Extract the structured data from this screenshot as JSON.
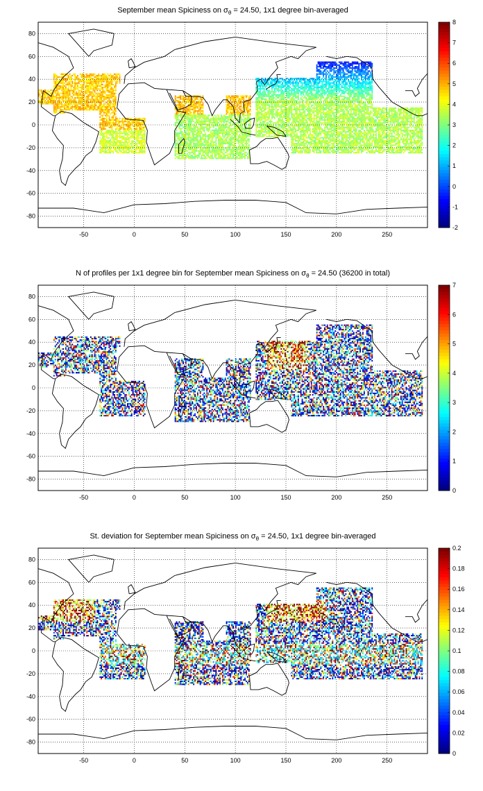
{
  "chart_data": [
    {
      "type": "heatmap",
      "title": "September mean Spiciness on σθ = 24.50, 1x1 degree bin-averaged",
      "title_parts": [
        "September mean Spiciness on σ",
        "θ",
        " = 24.50, 1x1 degree bin-averaged"
      ],
      "x_ticks": [
        "-50",
        "0",
        "50",
        "100",
        "150",
        "200",
        "250"
      ],
      "y_ticks": [
        "80",
        "60",
        "40",
        "20",
        "0",
        "-20",
        "-40",
        "-60",
        "-80"
      ],
      "xlim": [
        -95,
        290
      ],
      "ylim": [
        -90,
        90
      ],
      "colorbar": {
        "min": -2,
        "max": 8,
        "ticks": [
          "8",
          "7",
          "6",
          "5",
          "4",
          "3",
          "2",
          "1",
          "0",
          "-1",
          "-2"
        ]
      },
      "colormap": "jet",
      "grid": true,
      "field": "spiciness"
    },
    {
      "type": "heatmap",
      "title": "N of profiles per 1x1 degree bin for September mean Spiciness on σθ = 24.50 (36200 in total)",
      "title_parts": [
        "N of profiles per 1x1 degree bin for September mean Spiciness on σ",
        "θ",
        " = 24.50 (36200 in total)"
      ],
      "x_ticks": [
        "-50",
        "0",
        "50",
        "100",
        "150",
        "200",
        "250"
      ],
      "y_ticks": [
        "80",
        "60",
        "40",
        "20",
        "0",
        "-20",
        "-40",
        "-60",
        "-80"
      ],
      "xlim": [
        -95,
        290
      ],
      "ylim": [
        -90,
        90
      ],
      "colorbar": {
        "min": 0,
        "max": 7,
        "ticks": [
          "7",
          "6",
          "5",
          "4",
          "3",
          "2",
          "1",
          "0"
        ]
      },
      "colormap": "jet",
      "grid": true,
      "field": "count"
    },
    {
      "type": "heatmap",
      "title": "St. deviation for September mean Spiciness on σθ = 24.50, 1x1 degree bin-averaged",
      "title_parts": [
        "St. deviation for September mean Spiciness on σ",
        "θ",
        " = 24.50, 1x1 degree bin-averaged"
      ],
      "x_ticks": [
        "-50",
        "0",
        "50",
        "100",
        "150",
        "200",
        "250"
      ],
      "y_ticks": [
        "80",
        "60",
        "40",
        "20",
        "0",
        "-20",
        "-40",
        "-60",
        "-80"
      ],
      "xlim": [
        -95,
        290
      ],
      "ylim": [
        -90,
        90
      ],
      "colorbar": {
        "min": 0,
        "max": 0.2,
        "ticks": [
          "0.2",
          "0.18",
          "0.16",
          "0.14",
          "0.12",
          "0.1",
          "0.08",
          "0.06",
          "0.04",
          "0.02",
          "0"
        ]
      },
      "colormap": "jet",
      "grid": true,
      "field": "stdev"
    }
  ]
}
